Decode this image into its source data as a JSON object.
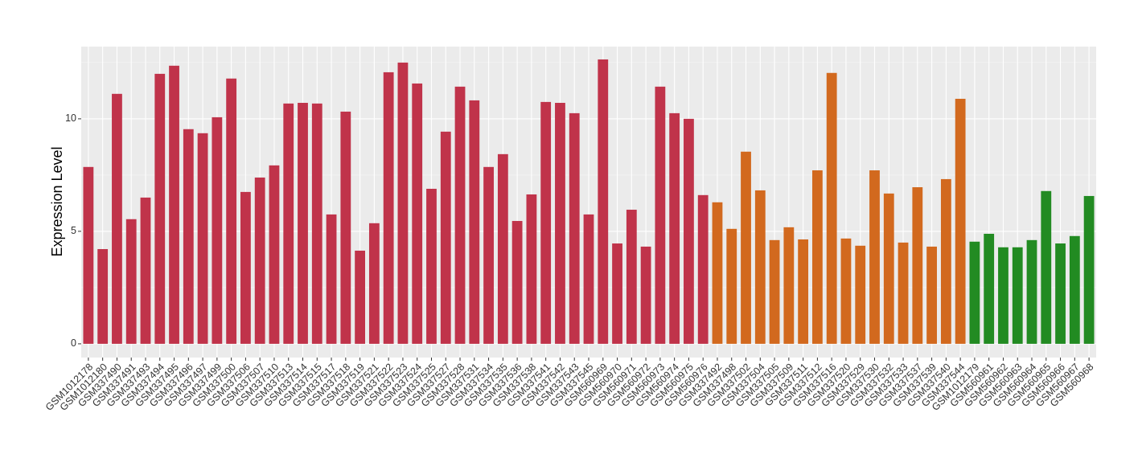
{
  "chart_data": {
    "type": "bar",
    "y_label": "Expression Level",
    "categories": [
      "GSM1012178",
      "GSM1012180",
      "GSM337490",
      "GSM337491",
      "GSM337493",
      "GSM337494",
      "GSM337495",
      "GSM337496",
      "GSM337497",
      "GSM337499",
      "GSM337500",
      "GSM337506",
      "GSM337507",
      "GSM337510",
      "GSM337513",
      "GSM337514",
      "GSM337515",
      "GSM337517",
      "GSM337518",
      "GSM337519",
      "GSM337521",
      "GSM337522",
      "GSM337523",
      "GSM337524",
      "GSM337525",
      "GSM337527",
      "GSM337528",
      "GSM337531",
      "GSM337534",
      "GSM337535",
      "GSM337536",
      "GSM337538",
      "GSM337541",
      "GSM337542",
      "GSM337543",
      "GSM337545",
      "GSM560969",
      "GSM560970",
      "GSM560971",
      "GSM560972",
      "GSM560973",
      "GSM560974",
      "GSM560975",
      "GSM560976",
      "GSM337492",
      "GSM337498",
      "GSM337502",
      "GSM337504",
      "GSM337505",
      "GSM337509",
      "GSM337511",
      "GSM337512",
      "GSM337516",
      "GSM337520",
      "GSM337529",
      "GSM337530",
      "GSM337532",
      "GSM337533",
      "GSM337537",
      "GSM337539",
      "GSM337540",
      "GSM337544",
      "GSM1012179",
      "GSM560961",
      "GSM560962",
      "GSM560963",
      "GSM560964",
      "GSM560965",
      "GSM560966",
      "GSM560967",
      "GSM560968"
    ],
    "values": [
      7.86,
      4.21,
      11.11,
      5.54,
      6.5,
      12.0,
      12.36,
      9.54,
      9.36,
      10.07,
      11.79,
      6.75,
      7.39,
      7.93,
      10.68,
      10.71,
      10.68,
      5.75,
      10.32,
      4.14,
      5.36,
      12.07,
      12.5,
      11.57,
      6.89,
      9.43,
      11.43,
      10.82,
      7.86,
      8.43,
      5.46,
      6.64,
      10.75,
      10.71,
      10.25,
      5.75,
      12.64,
      4.46,
      5.96,
      4.32,
      11.43,
      10.25,
      10.0,
      6.61,
      6.29,
      5.11,
      8.54,
      6.82,
      4.61,
      5.18,
      4.64,
      7.71,
      12.04,
      4.68,
      4.36,
      7.71,
      6.68,
      4.5,
      6.96,
      4.32,
      7.32,
      10.89,
      4.54,
      4.89,
      4.29,
      4.29,
      4.61,
      6.79,
      4.46,
      4.79,
      6.57
    ],
    "colors": [
      "#c0334a",
      "#c0334a",
      "#c0334a",
      "#c0334a",
      "#c0334a",
      "#c0334a",
      "#c0334a",
      "#c0334a",
      "#c0334a",
      "#c0334a",
      "#c0334a",
      "#c0334a",
      "#c0334a",
      "#c0334a",
      "#c0334a",
      "#c0334a",
      "#c0334a",
      "#c0334a",
      "#c0334a",
      "#c0334a",
      "#c0334a",
      "#c0334a",
      "#c0334a",
      "#c0334a",
      "#c0334a",
      "#c0334a",
      "#c0334a",
      "#c0334a",
      "#c0334a",
      "#c0334a",
      "#c0334a",
      "#c0334a",
      "#c0334a",
      "#c0334a",
      "#c0334a",
      "#c0334a",
      "#c0334a",
      "#c0334a",
      "#c0334a",
      "#c0334a",
      "#c0334a",
      "#c0334a",
      "#c0334a",
      "#c0334a",
      "#d2691e",
      "#d2691e",
      "#d2691e",
      "#d2691e",
      "#d2691e",
      "#d2691e",
      "#d2691e",
      "#d2691e",
      "#d2691e",
      "#d2691e",
      "#d2691e",
      "#d2691e",
      "#d2691e",
      "#d2691e",
      "#d2691e",
      "#d2691e",
      "#d2691e",
      "#d2691e",
      "#228b22",
      "#228b22",
      "#228b22",
      "#228b22",
      "#228b22",
      "#228b22",
      "#228b22",
      "#228b22",
      "#228b22"
    ],
    "ylim": [
      -0.61,
      13.21
    ],
    "yticks": [
      0,
      5,
      10
    ],
    "grid": true
  }
}
